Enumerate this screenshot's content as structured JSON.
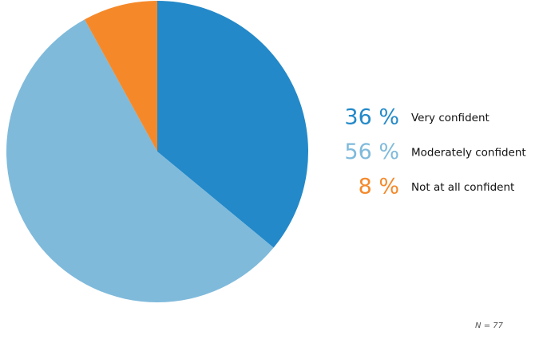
{
  "chart_data": {
    "type": "pie",
    "categories": [
      "Very confident",
      "Moderately confident",
      "Not at all confident"
    ],
    "values": [
      36,
      56,
      8
    ],
    "value_labels": [
      "36 %",
      "56 %",
      "8 %"
    ],
    "colors": [
      "#2389c9",
      "#7fbadb",
      "#f5892a"
    ],
    "note": "N = 77"
  }
}
